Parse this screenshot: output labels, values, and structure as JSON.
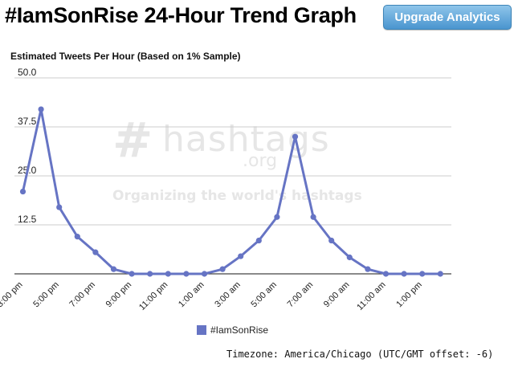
{
  "header": {
    "title": "#IamSonRise 24-Hour Trend Graph",
    "upgrade_label": "Upgrade Analytics"
  },
  "watermark": {
    "hash": "#",
    "word": "hashtags",
    "tld": ".org",
    "tagline": "Organizing the world's hashtags"
  },
  "footer": {
    "timezone": "Timezone: America/Chicago (UTC/GMT offset: -6)"
  },
  "colors": {
    "series": "#6674c4",
    "grid": "#cccccc",
    "button": "#5aa2d8"
  },
  "chart_data": {
    "type": "line",
    "title": "Estimated Tweets Per Hour (Based on 1% Sample)",
    "xlabel": "",
    "ylabel": "",
    "ylim": [
      0,
      50
    ],
    "yticks": [
      0,
      12.5,
      25,
      37.5,
      50
    ],
    "ytick_labels": [
      "",
      "12.5",
      "25.0",
      "37.5",
      "50.0"
    ],
    "x": [
      "3:00 pm",
      "4:00 pm",
      "5:00 pm",
      "6:00 pm",
      "7:00 pm",
      "8:00 pm",
      "9:00 pm",
      "10:00 pm",
      "11:00 pm",
      "12:00 am",
      "1:00 am",
      "2:00 am",
      "3:00 am",
      "4:00 am",
      "5:00 am",
      "6:00 am",
      "7:00 am",
      "8:00 am",
      "9:00 am",
      "10:00 am",
      "11:00 am",
      "12:00 pm",
      "1:00 pm",
      "2:00 pm"
    ],
    "xtick_labels": [
      "3:00 pm",
      "5:00 pm",
      "7:00 pm",
      "9:00 pm",
      "11:00 pm",
      "1:00 am",
      "3:00 am",
      "5:00 am",
      "7:00 am",
      "9:00 am",
      "11:00 am",
      "1:00 pm"
    ],
    "grid": true,
    "legend_position": "bottom",
    "series": [
      {
        "name": "#IamSonRise",
        "values": [
          21,
          42,
          17,
          9.5,
          5.5,
          1.2,
          0,
          0,
          0,
          0,
          0,
          1.2,
          4.5,
          8.5,
          14.5,
          35,
          14.5,
          8.5,
          4.2,
          1.2,
          0,
          0,
          0,
          0
        ]
      }
    ]
  }
}
